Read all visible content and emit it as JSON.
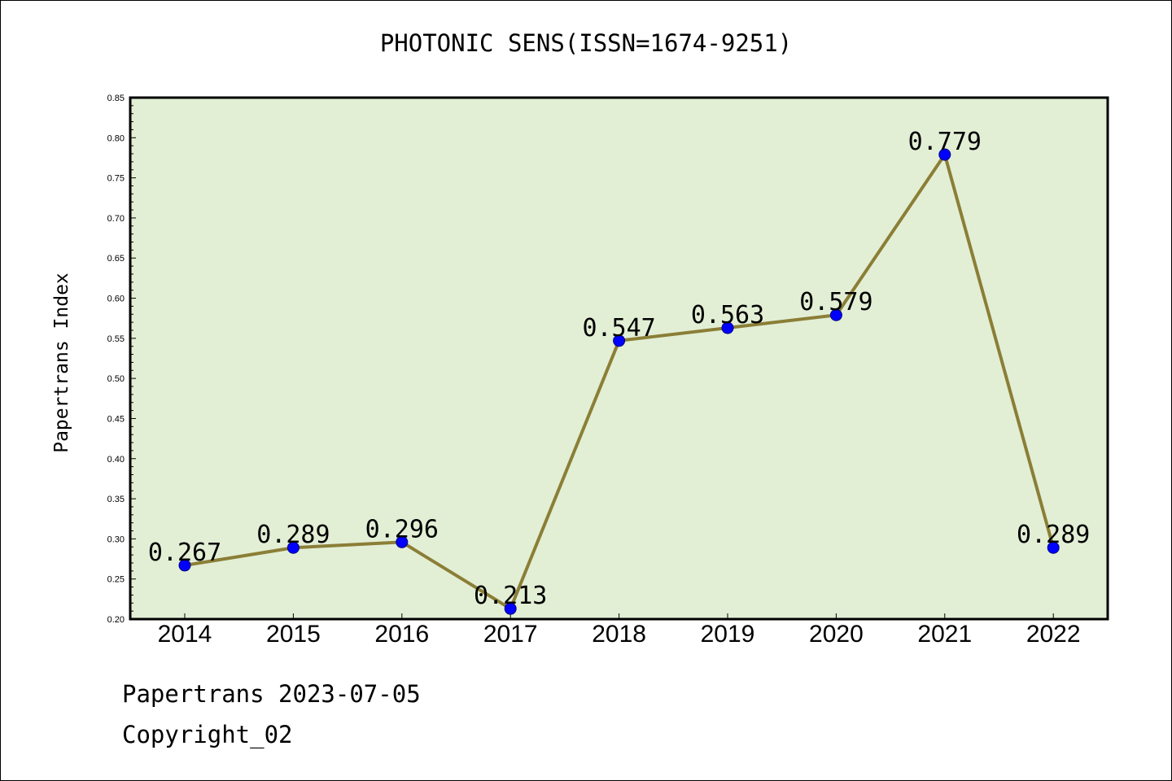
{
  "chart_data": {
    "type": "line",
    "title": "PHOTONIC SENS(ISSN=1674-9251)",
    "ylabel": "Papertrans Index",
    "xlabel": "",
    "categories": [
      "2014",
      "2015",
      "2016",
      "2017",
      "2018",
      "2019",
      "2020",
      "2021",
      "2022"
    ],
    "series": [
      {
        "values": [
          0.267,
          0.289,
          0.296,
          0.213,
          0.547,
          0.563,
          0.579,
          0.779,
          0.289
        ]
      }
    ],
    "data_labels": [
      "0.267",
      "0.289",
      "0.296",
      "0.213",
      "0.547",
      "0.563",
      "0.579",
      "0.779",
      "0.289"
    ],
    "ylim": [
      0.2,
      0.85
    ],
    "yticks": [
      "0.20",
      "0.25",
      "0.30",
      "0.35",
      "0.40",
      "0.45",
      "0.50",
      "0.55",
      "0.60",
      "0.65",
      "0.70",
      "0.75",
      "0.80",
      "0.85"
    ],
    "grid": false,
    "colors": {
      "plot_background": "#e2efd5",
      "line": "#8b7e36",
      "marker_fill": "#0000ff",
      "marker_edge": "#000080"
    }
  },
  "footer": {
    "line1": "Papertrans 2023-07-05",
    "line2": "Copyright_02"
  }
}
